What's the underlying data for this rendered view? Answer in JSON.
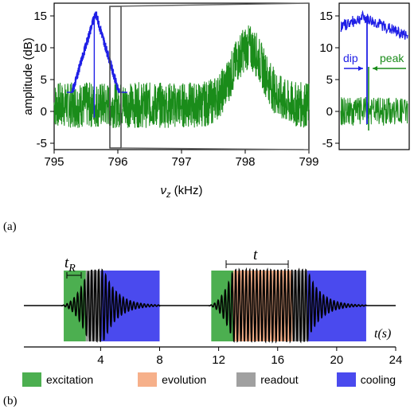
{
  "chart_data": [
    {
      "type": "line",
      "panel": "(a)",
      "xlabel": "ν_z (kHz)",
      "ylabel": "amplitude (dB)",
      "xlim": [
        795,
        799
      ],
      "ylim": [
        -6,
        17
      ],
      "xticks": [
        "795",
        "796",
        "797",
        "798",
        "799"
      ],
      "yticks": [
        "-5",
        "0",
        "5",
        "10",
        "15"
      ],
      "series": [
        {
          "color": "#1f1fe6",
          "peak_x": 795.65,
          "peak_y": 15.5,
          "noise_width": 0.35
        },
        {
          "color": "#1a8c1a",
          "baseline": 1,
          "peak_x": 798.05,
          "peak_y": 10,
          "noise_width": 6
        }
      ]
    },
    {
      "type": "line",
      "panel": "inset",
      "yticks": [
        "-5",
        "0",
        "5",
        "10",
        "15"
      ],
      "annotations": [
        "dip",
        "peak"
      ],
      "colors": {
        "dip": "#1f1fe6",
        "peak": "#1a8c1a"
      }
    },
    {
      "type": "timeline",
      "panel": "(b)",
      "xlabel": "t(s)",
      "xlim": [
        0,
        24
      ],
      "xticks": [
        "4",
        "8",
        "12",
        "16",
        "20",
        "24"
      ],
      "annotations": [
        "t_R",
        "t"
      ],
      "sequences": [
        {
          "excitation": [
            1.5,
            3.0
          ],
          "readout": [
            3.0,
            4.0
          ],
          "cooling": [
            4.0,
            8.0
          ]
        },
        {
          "excitation": [
            11.5,
            13.0
          ],
          "evolution": [
            13.0,
            17.0
          ],
          "readout": [
            17.0,
            18.0
          ],
          "cooling": [
            18.0,
            22.0
          ]
        }
      ]
    }
  ],
  "legend": [
    {
      "label": "excitation",
      "color": "#4caf50"
    },
    {
      "label": "evolution",
      "color": "#f6b08a"
    },
    {
      "label": "readout",
      "color": "#a0a0a0"
    },
    {
      "label": "cooling",
      "color": "#4a4aee"
    }
  ],
  "labels": {
    "a": "(a)",
    "b": "(b)",
    "dip": "dip",
    "peak": "peak",
    "tR": "t",
    "tR_sub": "R",
    "t": "t",
    "ts": "t(s)",
    "xlabel_nu": "ν",
    "xlabel_sub": "z",
    "xlabel_unit": " (kHz)",
    "ylabel": "amplitude (dB)"
  }
}
